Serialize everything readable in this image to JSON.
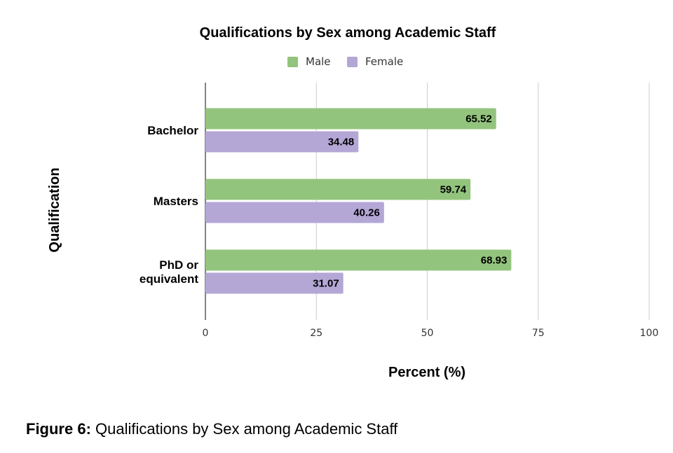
{
  "chart_data": {
    "type": "bar",
    "orientation": "horizontal",
    "title": "Qualifications by Sex among Academic Staff",
    "categories": [
      [
        "Bachelor"
      ],
      [
        "Masters"
      ],
      [
        "PhD or",
        "equivalent"
      ]
    ],
    "series": [
      {
        "name": "Male",
        "color": "#93c47d",
        "values": [
          65.52,
          59.74,
          68.93
        ]
      },
      {
        "name": "Female",
        "color": "#b4a7d6",
        "values": [
          34.48,
          40.26,
          31.07
        ]
      }
    ],
    "xlabel": "Percent (%)",
    "ylabel": "Qualification",
    "xlim": [
      0,
      100
    ],
    "xticks": [
      0,
      25,
      50,
      75,
      100
    ],
    "grid": true,
    "legend_position": "top"
  },
  "caption": {
    "label": "Figure 6:",
    "text": " Qualifications by Sex among Academic Staff"
  }
}
